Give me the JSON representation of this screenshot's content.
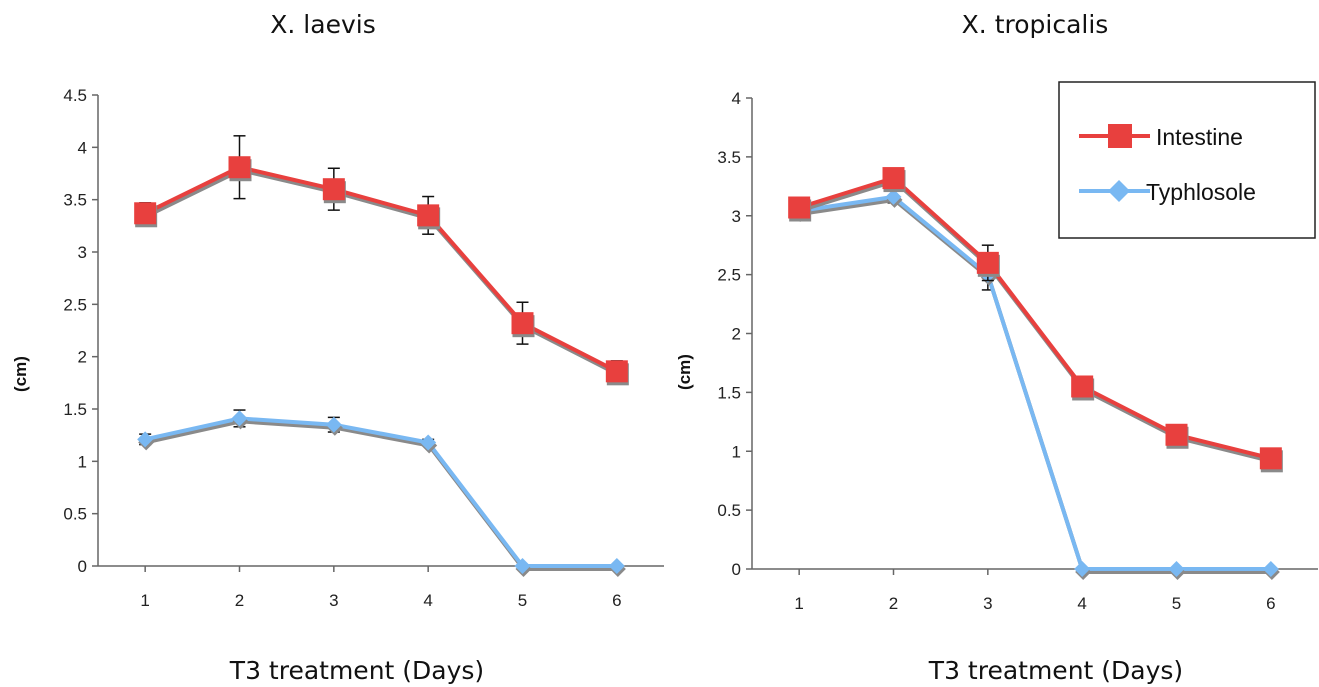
{
  "chart_data": [
    {
      "type": "line",
      "title": "X. laevis",
      "xlabel": "T3 treatment (Days)",
      "ylabel": "(cm)",
      "x": [
        1,
        2,
        3,
        4,
        5,
        6
      ],
      "xlim": [
        0.5,
        6.5
      ],
      "ylim": [
        0,
        4.5
      ],
      "yticks": [
        0,
        0.5,
        1,
        1.5,
        2,
        2.5,
        3,
        3.5,
        4,
        4.5
      ],
      "legend": "none",
      "grid": false,
      "series": [
        {
          "name": "Intestine",
          "color": "#e8403e",
          "marker": "square",
          "values": [
            3.37,
            3.81,
            3.6,
            3.35,
            2.32,
            1.86
          ],
          "error": [
            0.1,
            0.3,
            0.2,
            0.18,
            0.2,
            0.1
          ]
        },
        {
          "name": "Typhlosole",
          "color": "#79b8f2",
          "marker": "diamond",
          "values": [
            1.21,
            1.41,
            1.35,
            1.18,
            0.0,
            0.0
          ],
          "error": [
            0.05,
            0.08,
            0.07,
            0.03,
            0.0,
            0.0
          ]
        }
      ]
    },
    {
      "type": "line",
      "title": "X. tropicalis",
      "xlabel": "T3 treatment (Days)",
      "ylabel": "(cm)",
      "x": [
        1,
        2,
        3,
        4,
        5,
        6
      ],
      "xlim": [
        0.5,
        6.5
      ],
      "ylim": [
        0,
        4
      ],
      "yticks": [
        0,
        0.5,
        1,
        1.5,
        2,
        2.5,
        3,
        3.5,
        4
      ],
      "legend": "top-right",
      "grid": false,
      "series": [
        {
          "name": "Intestine",
          "color": "#e8403e",
          "marker": "square",
          "values": [
            3.07,
            3.32,
            2.6,
            1.55,
            1.14,
            0.94
          ],
          "error": [
            0.08,
            0.06,
            0.15,
            0.04,
            0.06,
            0.03
          ]
        },
        {
          "name": "Typhlosole",
          "color": "#79b8f2",
          "marker": "diamond",
          "values": [
            3.04,
            3.16,
            2.5,
            0.0,
            0.0,
            0.0
          ],
          "error": [
            0.08,
            0.05,
            0.13,
            0.0,
            0.0,
            0.0
          ]
        }
      ]
    }
  ]
}
